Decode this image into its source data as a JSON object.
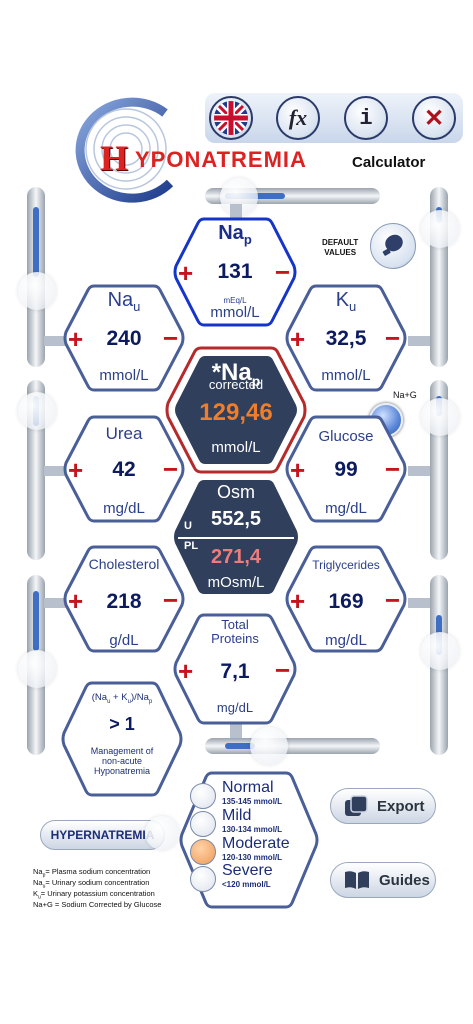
{
  "header": {
    "title_first": "H",
    "title_rest": "YPONATREMIA",
    "title_suffix": "Calculator",
    "buttons": {
      "fx": "fx",
      "info": "i",
      "close": "✕"
    }
  },
  "default_values": {
    "line1": "DEFAULT",
    "line2": "VALUES"
  },
  "nap": {
    "label": "Na",
    "sub": "p",
    "value": "131",
    "unit_small": "mEq/L",
    "unit": "mmol/L"
  },
  "nau": {
    "label": "Na",
    "sub": "u",
    "value": "240",
    "unit": "mmol/L"
  },
  "ku": {
    "label": "K",
    "sub": "u",
    "value": "32,5",
    "unit": "mmol/L"
  },
  "corrected": {
    "label": "*Na",
    "sub": "p",
    "caption": "corrected",
    "value": "129,46",
    "unit": "mmol/L"
  },
  "nag": {
    "label": "Na+G"
  },
  "urea": {
    "label": "Urea",
    "value": "42",
    "unit": "mg/dL"
  },
  "glucose": {
    "label": "Glucose",
    "value": "99",
    "unit": "mg/dL"
  },
  "osm": {
    "label": "Osm",
    "u": "U",
    "pl": "PL",
    "u_value": "552,5",
    "pl_value": "271,4",
    "unit": "mOsm/L"
  },
  "cholesterol": {
    "label": "Cholesterol",
    "value": "218",
    "unit": "g/dL"
  },
  "triglycerides": {
    "label": "Triglycerides",
    "value": "169",
    "unit": "mg/dL"
  },
  "proteins": {
    "label1": "Total",
    "label2": "Proteins",
    "value": "7,1",
    "unit": "mg/dL"
  },
  "ratio": {
    "formula": "(Na",
    "formula_u1": "u",
    "formula_mid": " + K",
    "formula_u2": "u",
    "formula_end": ")/Na",
    "formula_p": "p",
    "value": "> 1",
    "desc1": "Management  of",
    "desc2": "non-acute",
    "desc3": "Hyponatremia"
  },
  "signs": {
    "plus": "+",
    "minus": "−"
  },
  "severity": [
    {
      "name": "Normal",
      "range": "135-145  mmol/L",
      "active": false
    },
    {
      "name": "Mild",
      "range": "130-134  mmol/L",
      "active": false
    },
    {
      "name": "Moderate",
      "range": "120-130  mmol/L",
      "active": true
    },
    {
      "name": "Severe",
      "range": "<120  mmol/L",
      "active": false
    }
  ],
  "buttons": {
    "export": "Export",
    "guides": "Guides",
    "hypernatremia": "HYPERNATREMIA"
  },
  "legend": [
    {
      "a": "Na",
      "s": "p",
      "t": "= Plasma sodium concentration"
    },
    {
      "a": "Na",
      "s": "u",
      "t": "= Urinary sodium concentration"
    },
    {
      "a": "K",
      "s": "u",
      "t": "= Urinary potassium concentration"
    },
    {
      "a": "Na+G",
      "s": "",
      "t": " = Sodium Corrected by Glucose"
    }
  ],
  "colors": {
    "accent": "#2b3f8a",
    "red": "#c4141e",
    "orange": "#e87b2a",
    "dark": "#2f3f5c",
    "moderate_dot": "#f0a060"
  }
}
